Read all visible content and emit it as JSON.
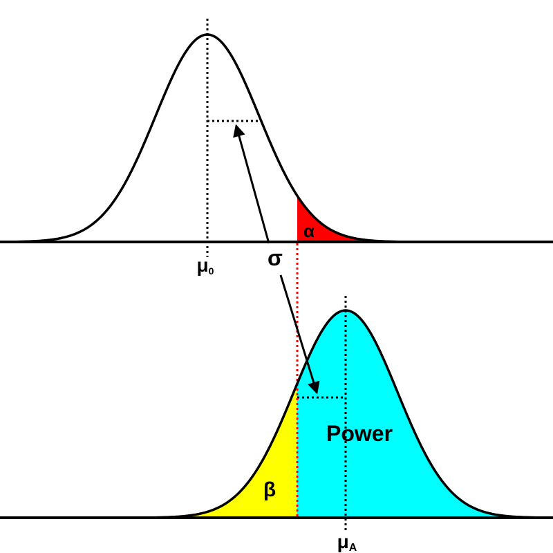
{
  "labels": {
    "alpha": "α",
    "sigma": "σ",
    "beta": "β",
    "power": "Power",
    "mu": "μ",
    "null_subscript": "0",
    "alt_subscript": "A"
  },
  "colors": {
    "alpha_region": "#ff0000",
    "beta_region": "#ffff00",
    "power_region": "#00ffff",
    "curve": "#000000",
    "critical_line": "#ff0000"
  },
  "distributions": {
    "null": {
      "mean_label": "μ0"
    },
    "alternative": {
      "mean_label": "μA"
    }
  }
}
